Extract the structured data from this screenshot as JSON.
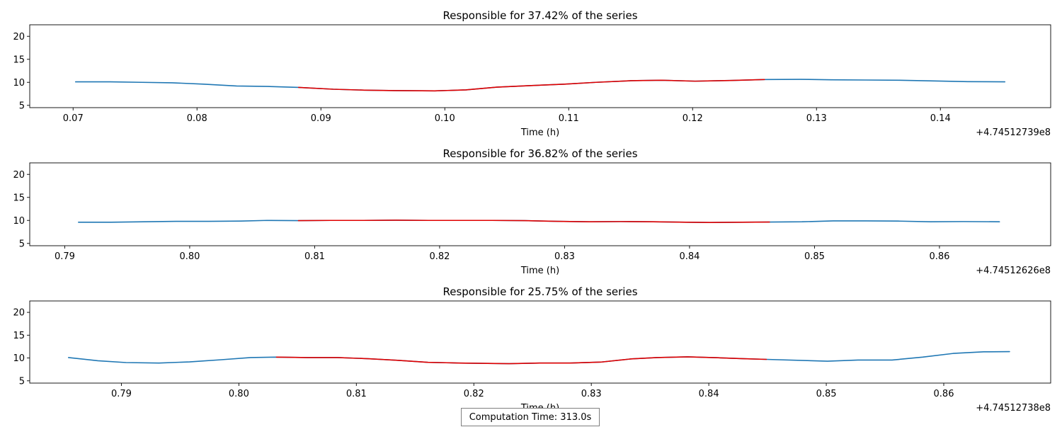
{
  "footer": {
    "computation_time": "Computation Time: 313.0s"
  },
  "chart_data": [
    {
      "type": "line",
      "title": "Responsible for 37.42% of the series",
      "xlabel": "Time (h)",
      "offset_label": "+4.74512739e8",
      "xlim": [
        0.0665,
        0.1489
      ],
      "ylim": [
        4.5,
        22.5
      ],
      "xticks": [
        {
          "value": 0.07,
          "label": "0.07"
        },
        {
          "value": 0.08,
          "label": "0.08"
        },
        {
          "value": 0.09,
          "label": "0.09"
        },
        {
          "value": 0.1,
          "label": "0.10"
        },
        {
          "value": 0.11,
          "label": "0.11"
        },
        {
          "value": 0.12,
          "label": "0.12"
        },
        {
          "value": 0.13,
          "label": "0.13"
        },
        {
          "value": 0.14,
          "label": "0.14"
        }
      ],
      "yticks": [
        {
          "value": 5,
          "label": "5"
        },
        {
          "value": 10,
          "label": "10"
        },
        {
          "value": 15,
          "label": "15"
        },
        {
          "value": 20,
          "label": "20"
        }
      ],
      "series": [
        {
          "color": "#1f77b4",
          "x": [
            0.0702,
            0.073,
            0.0755,
            0.078,
            0.0805,
            0.0832,
            0.0857,
            0.0882,
            0.091,
            0.0935,
            0.096,
            0.0992,
            0.1017,
            0.1042,
            0.107,
            0.1097,
            0.1122,
            0.115,
            0.1175,
            0.1202,
            0.123,
            0.1258,
            0.1287,
            0.1312,
            0.134,
            0.1367,
            0.1395,
            0.1422,
            0.1452
          ],
          "y": [
            10.1,
            10.1,
            10.0,
            9.9,
            9.6,
            9.2,
            9.1,
            8.9,
            8.5,
            8.3,
            8.2,
            8.15,
            8.35,
            8.95,
            9.3,
            9.6,
            10.0,
            10.35,
            10.45,
            10.25,
            10.4,
            10.6,
            10.65,
            10.55,
            10.5,
            10.45,
            10.3,
            10.15,
            10.1
          ]
        },
        {
          "color": "#e00000",
          "x": [
            0.0882,
            0.091,
            0.0935,
            0.096,
            0.0992,
            0.1017,
            0.1042,
            0.107,
            0.1097,
            0.1122,
            0.115,
            0.1175,
            0.1202,
            0.123,
            0.1258
          ],
          "y": [
            8.9,
            8.5,
            8.3,
            8.2,
            8.15,
            8.35,
            8.95,
            9.3,
            9.6,
            10.0,
            10.35,
            10.45,
            10.25,
            10.4,
            10.6
          ]
        }
      ]
    },
    {
      "type": "line",
      "title": "Responsible for 36.82% of the series",
      "xlabel": "Time (h)",
      "offset_label": "+4.74512626e8",
      "xlim": [
        0.7872,
        0.8689
      ],
      "ylim": [
        4.5,
        22.5
      ],
      "xticks": [
        {
          "value": 0.79,
          "label": "0.79"
        },
        {
          "value": 0.8,
          "label": "0.80"
        },
        {
          "value": 0.81,
          "label": "0.81"
        },
        {
          "value": 0.82,
          "label": "0.82"
        },
        {
          "value": 0.83,
          "label": "0.83"
        },
        {
          "value": 0.84,
          "label": "0.84"
        },
        {
          "value": 0.85,
          "label": "0.85"
        },
        {
          "value": 0.86,
          "label": "0.86"
        }
      ],
      "yticks": [
        {
          "value": 5,
          "label": "5"
        },
        {
          "value": 10,
          "label": "10"
        },
        {
          "value": 15,
          "label": "15"
        },
        {
          "value": 20,
          "label": "20"
        }
      ],
      "series": [
        {
          "color": "#1f77b4",
          "x": [
            0.7911,
            0.7937,
            0.7963,
            0.7989,
            0.8015,
            0.8041,
            0.8062,
            0.8087,
            0.8113,
            0.8139,
            0.8165,
            0.8191,
            0.8216,
            0.8242,
            0.8268,
            0.8294,
            0.832,
            0.8345,
            0.8371,
            0.8397,
            0.8416,
            0.8442,
            0.8464,
            0.849,
            0.8515,
            0.8541,
            0.8567,
            0.8593,
            0.8619,
            0.8648
          ],
          "y": [
            9.6,
            9.6,
            9.7,
            9.8,
            9.8,
            9.85,
            10.0,
            9.95,
            10.0,
            10.0,
            10.05,
            10.0,
            10.0,
            10.0,
            9.95,
            9.8,
            9.7,
            9.75,
            9.7,
            9.6,
            9.55,
            9.6,
            9.65,
            9.7,
            9.9,
            9.9,
            9.85,
            9.7,
            9.75,
            9.7
          ]
        },
        {
          "color": "#e00000",
          "x": [
            0.8087,
            0.8113,
            0.8139,
            0.8165,
            0.8191,
            0.8216,
            0.8242,
            0.8268,
            0.8294,
            0.832,
            0.8345,
            0.8371,
            0.8397,
            0.8416,
            0.8442,
            0.8464
          ],
          "y": [
            9.95,
            10.0,
            10.0,
            10.05,
            10.0,
            10.0,
            10.0,
            9.95,
            9.8,
            9.7,
            9.75,
            9.7,
            9.6,
            9.55,
            9.6,
            9.65
          ]
        }
      ]
    },
    {
      "type": "line",
      "title": "Responsible for 25.75% of the series",
      "xlabel": "Time (h)",
      "offset_label": "+4.74512738e8",
      "xlim": [
        0.7822,
        0.8691
      ],
      "ylim": [
        4.5,
        22.5
      ],
      "xticks": [
        {
          "value": 0.79,
          "label": "0.79"
        },
        {
          "value": 0.8,
          "label": "0.80"
        },
        {
          "value": 0.81,
          "label": "0.81"
        },
        {
          "value": 0.82,
          "label": "0.82"
        },
        {
          "value": 0.83,
          "label": "0.83"
        },
        {
          "value": 0.84,
          "label": "0.84"
        },
        {
          "value": 0.85,
          "label": "0.85"
        },
        {
          "value": 0.86,
          "label": "0.86"
        }
      ],
      "yticks": [
        {
          "value": 5,
          "label": "5"
        },
        {
          "value": 10,
          "label": "10"
        },
        {
          "value": 15,
          "label": "15"
        },
        {
          "value": 20,
          "label": "20"
        }
      ],
      "series": [
        {
          "color": "#1f77b4",
          "x": [
            0.7855,
            0.788,
            0.7904,
            0.7932,
            0.7958,
            0.7984,
            0.801,
            0.8032,
            0.8058,
            0.8084,
            0.811,
            0.8135,
            0.8161,
            0.8187,
            0.823,
            0.8256,
            0.8282,
            0.8308,
            0.8334,
            0.8356,
            0.8382,
            0.8408,
            0.843,
            0.8449,
            0.8501,
            0.8527,
            0.8556,
            0.8582,
            0.8608,
            0.8634,
            0.8656
          ],
          "y": [
            10.1,
            9.4,
            9.0,
            8.9,
            9.15,
            9.6,
            10.1,
            10.2,
            10.1,
            10.1,
            9.85,
            9.5,
            9.05,
            8.9,
            8.75,
            8.9,
            8.9,
            9.1,
            9.8,
            10.1,
            10.25,
            10.05,
            9.85,
            9.7,
            9.3,
            9.55,
            9.55,
            10.2,
            11.0,
            11.35,
            11.4
          ]
        },
        {
          "color": "#e00000",
          "x": [
            0.8032,
            0.8058,
            0.8084,
            0.811,
            0.8135,
            0.8161,
            0.8187,
            0.823,
            0.8256,
            0.8282,
            0.8308,
            0.8334,
            0.8356,
            0.8382,
            0.8408,
            0.843,
            0.8449
          ],
          "y": [
            10.2,
            10.1,
            10.1,
            9.85,
            9.5,
            9.05,
            8.9,
            8.75,
            8.9,
            8.9,
            9.1,
            9.8,
            10.1,
            10.25,
            10.05,
            9.85,
            9.7
          ]
        }
      ]
    }
  ]
}
